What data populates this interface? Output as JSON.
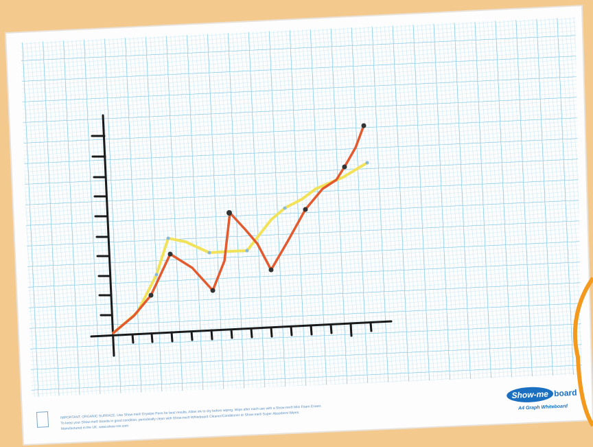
{
  "board": {
    "logo": "Show-me",
    "logo_suffix": "board",
    "subtitle": "A4 Graph Whiteboard",
    "footer": [
      "IMPORTANT: ORGANIC SURFACE. Use Show-me® Drywipe Pens for best results. Allow ink to dry before wiping. Wipe after each use with a Show-me® Mini Foam Eraser.",
      "To keep your Show-me® boards in good condition, periodically clean with Show-me® Whiteboard Cleaner/Conditioner or Show-me® Super Absorbent Wipes.",
      "Manufactured in the UK. www.show-me.com"
    ]
  }
}
